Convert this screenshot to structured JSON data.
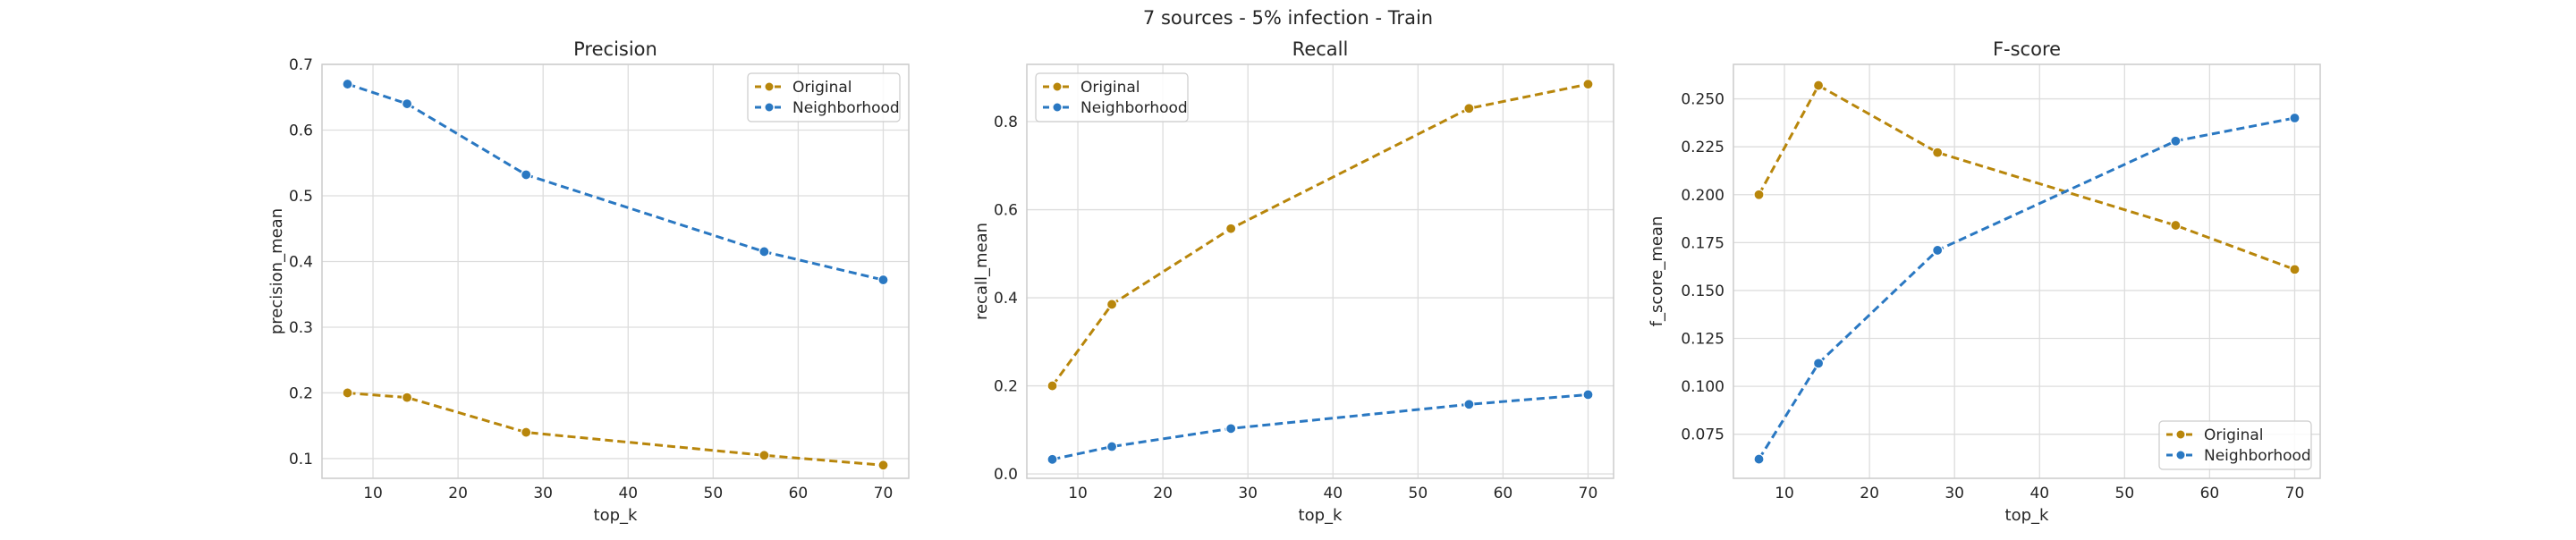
{
  "figure": {
    "suptitle": "7 sources - 5% infection - Train"
  },
  "colors": {
    "original": "#b8860b",
    "neighborhood": "#2a78c2",
    "grid": "#dddddd",
    "frame": "#cccccc"
  },
  "chart_data": [
    {
      "type": "line",
      "title": "Precision",
      "xlabel": "top_k",
      "ylabel": "precision_mean",
      "x": [
        7,
        14,
        28,
        56,
        70
      ],
      "xlim": [
        4,
        73
      ],
      "ylim": [
        0.07,
        0.7
      ],
      "xticks": [
        10,
        20,
        30,
        40,
        50,
        60,
        70
      ],
      "yticks": [
        0.1,
        0.2,
        0.3,
        0.4,
        0.5,
        0.6,
        0.7
      ],
      "ytick_labels": [
        "0.1",
        "0.2",
        "0.3",
        "0.4",
        "0.5",
        "0.6",
        "0.7"
      ],
      "grid": true,
      "legend_position": "top-right",
      "series": [
        {
          "name": "Original",
          "color_key": "original",
          "values": [
            0.2,
            0.193,
            0.14,
            0.105,
            0.09
          ]
        },
        {
          "name": "Neighborhood",
          "color_key": "neighborhood",
          "values": [
            0.67,
            0.64,
            0.532,
            0.415,
            0.372
          ]
        }
      ]
    },
    {
      "type": "line",
      "title": "Recall",
      "xlabel": "top_k",
      "ylabel": "recall_mean",
      "x": [
        7,
        14,
        28,
        56,
        70
      ],
      "xlim": [
        4,
        73
      ],
      "ylim": [
        -0.01,
        0.93
      ],
      "xticks": [
        10,
        20,
        30,
        40,
        50,
        60,
        70
      ],
      "yticks": [
        0.0,
        0.2,
        0.4,
        0.6,
        0.8
      ],
      "ytick_labels": [
        "0.0",
        "0.2",
        "0.4",
        "0.6",
        "0.8"
      ],
      "grid": true,
      "legend_position": "top-left",
      "series": [
        {
          "name": "Original",
          "color_key": "original",
          "values": [
            0.2,
            0.385,
            0.557,
            0.83,
            0.885
          ]
        },
        {
          "name": "Neighborhood",
          "color_key": "neighborhood",
          "values": [
            0.033,
            0.062,
            0.103,
            0.158,
            0.18
          ]
        }
      ]
    },
    {
      "type": "line",
      "title": "F-score",
      "xlabel": "top_k",
      "ylabel": "f_score_mean",
      "x": [
        7,
        14,
        28,
        56,
        70
      ],
      "xlim": [
        4,
        73
      ],
      "ylim": [
        0.052,
        0.268
      ],
      "xticks": [
        10,
        20,
        30,
        40,
        50,
        60,
        70
      ],
      "yticks": [
        0.075,
        0.1,
        0.125,
        0.15,
        0.175,
        0.2,
        0.225,
        0.25
      ],
      "ytick_labels": [
        "0.075",
        "0.100",
        "0.125",
        "0.150",
        "0.175",
        "0.200",
        "0.225",
        "0.250"
      ],
      "grid": true,
      "legend_position": "bottom-right",
      "series": [
        {
          "name": "Original",
          "color_key": "original",
          "values": [
            0.2,
            0.257,
            0.222,
            0.184,
            0.161
          ]
        },
        {
          "name": "Neighborhood",
          "color_key": "neighborhood",
          "values": [
            0.062,
            0.112,
            0.171,
            0.228,
            0.24
          ]
        }
      ]
    }
  ]
}
